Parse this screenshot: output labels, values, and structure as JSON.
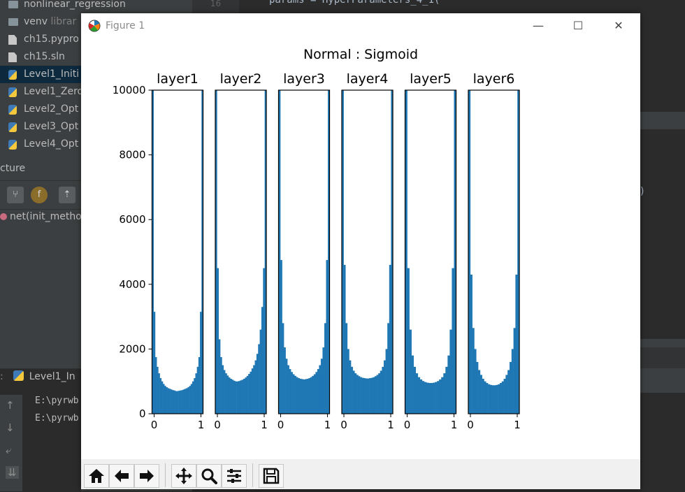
{
  "ide": {
    "tree_items": [
      {
        "label": "nonlinear_regression",
        "dim": "",
        "icon": "folder-icon"
      },
      {
        "label": "venv",
        "dim": " librar",
        "icon": "folder-icon"
      },
      {
        "label": "ch15.pypro",
        "dim": "",
        "icon": "file-icon"
      },
      {
        "label": "ch15.sln",
        "dim": "",
        "icon": "file-icon"
      },
      {
        "label": "Level1_Initi",
        "dim": "",
        "icon": "python-file-icon"
      },
      {
        "label": "Level1_Zero",
        "dim": "",
        "icon": "python-file-icon"
      },
      {
        "label": "Level2_Opt",
        "dim": "",
        "icon": "python-file-icon"
      },
      {
        "label": "Level3_Opt",
        "dim": "",
        "icon": "python-file-icon"
      },
      {
        "label": "Level4_Opt",
        "dim": "",
        "icon": "python-file-icon"
      }
    ],
    "structure_title": "cture",
    "structure_item": "net(init_metho",
    "line_number": "16",
    "code_line": "params = HyperParameters_4_1(",
    "right_paren": ")",
    "run_tab": "Level1_In",
    "run_lines": [
      "E:\\pyrwb",
      "E:\\pyrwb"
    ]
  },
  "window": {
    "title": "Figure 1",
    "minimize": "—",
    "maximize": "☐",
    "close": "✕"
  },
  "toolbar": {
    "home": "home-icon",
    "back": "back-arrow-icon",
    "forward": "forward-arrow-icon",
    "pan": "pan-icon",
    "zoom": "zoom-icon",
    "configure": "configure-subplots-icon",
    "save": "save-icon"
  },
  "colors": {
    "bar": "#1f77b4",
    "ide_bg": "#2b2b2b",
    "selection": "#0d293e"
  },
  "chart_data": {
    "type": "bar",
    "title": "Normal : Sigmoid",
    "ylim": [
      0,
      10000
    ],
    "yticks": [
      0,
      2000,
      4000,
      6000,
      8000,
      10000
    ],
    "xlim": [
      0,
      1
    ],
    "xticks": [
      "0",
      "1"
    ],
    "subplots": [
      {
        "title": "layer1",
        "values": [
          10000,
          3150,
          1750,
          1450,
          1250,
          1100,
          1000,
          920,
          860,
          820,
          790,
          770,
          750,
          730,
          720,
          700,
          700,
          710,
          720,
          730,
          750,
          770,
          790,
          820,
          860,
          920,
          1000,
          1100,
          1250,
          1450,
          1750,
          3150,
          10000
        ]
      },
      {
        "title": "layer2",
        "values": [
          10000,
          4500,
          2300,
          1750,
          1500,
          1350,
          1250,
          1180,
          1120,
          1080,
          1050,
          1020,
          1000,
          1000,
          1010,
          1030,
          1050,
          1080,
          1120,
          1170,
          1230,
          1300,
          1400,
          1500,
          1650,
          1850,
          2150,
          2600,
          3300,
          4500,
          10000
        ]
      },
      {
        "title": "layer3",
        "values": [
          10000,
          4750,
          2800,
          2050,
          1700,
          1500,
          1380,
          1290,
          1220,
          1170,
          1130,
          1100,
          1080,
          1070,
          1060,
          1070,
          1080,
          1100,
          1130,
          1170,
          1220,
          1290,
          1380,
          1500,
          1700,
          2050,
          2800,
          4750,
          10000
        ]
      },
      {
        "title": "layer4",
        "values": [
          10000,
          4600,
          2800,
          2000,
          1650,
          1450,
          1330,
          1250,
          1200,
          1160,
          1130,
          1110,
          1100,
          1090,
          1090,
          1100,
          1110,
          1130,
          1160,
          1200,
          1250,
          1330,
          1450,
          1650,
          2000,
          2800,
          4600,
          10000
        ]
      },
      {
        "title": "layer5",
        "values": [
          10000,
          4500,
          2600,
          1800,
          1450,
          1250,
          1130,
          1060,
          1010,
          980,
          960,
          950,
          950,
          960,
          980,
          1010,
          1060,
          1130,
          1250,
          1450,
          1800,
          2600,
          4500,
          10000
        ]
      },
      {
        "title": "layer6",
        "values": [
          10000,
          4300,
          2650,
          2000,
          1600,
          1350,
          1200,
          1080,
          1000,
          950,
          910,
          890,
          880,
          880,
          890,
          910,
          950,
          1000,
          1080,
          1200,
          1350,
          1600,
          2000,
          2650,
          4300,
          10000
        ]
      }
    ]
  }
}
